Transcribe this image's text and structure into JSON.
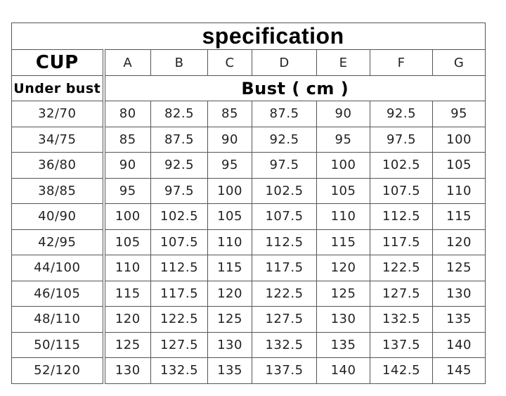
{
  "title": "specification",
  "cup_label": "CUP",
  "cups": [
    "A",
    "B",
    "C",
    "D",
    "E",
    "F",
    "G"
  ],
  "under_bust_label": "Under bust",
  "bust_label": "Bust ( cm )",
  "rows": [
    {
      "under_bust": "32/70",
      "values": [
        "80",
        "82.5",
        "85",
        "87.5",
        "90",
        "92.5",
        "95"
      ]
    },
    {
      "under_bust": "34/75",
      "values": [
        "85",
        "87.5",
        "90",
        "92.5",
        "95",
        "97.5",
        "100"
      ]
    },
    {
      "under_bust": "36/80",
      "values": [
        "90",
        "92.5",
        "95",
        "97.5",
        "100",
        "102.5",
        "105"
      ]
    },
    {
      "under_bust": "38/85",
      "values": [
        "95",
        "97.5",
        "100",
        "102.5",
        "105",
        "107.5",
        "110"
      ]
    },
    {
      "under_bust": "40/90",
      "values": [
        "100",
        "102.5",
        "105",
        "107.5",
        "110",
        "112.5",
        "115"
      ]
    },
    {
      "under_bust": "42/95",
      "values": [
        "105",
        "107.5",
        "110",
        "112.5",
        "115",
        "117.5",
        "120"
      ]
    },
    {
      "under_bust": "44/100",
      "values": [
        "110",
        "112.5",
        "115",
        "117.5",
        "120",
        "122.5",
        "125"
      ]
    },
    {
      "under_bust": "46/105",
      "values": [
        "115",
        "117.5",
        "120",
        "122.5",
        "125",
        "127.5",
        "130"
      ]
    },
    {
      "under_bust": "48/110",
      "values": [
        "120",
        "122.5",
        "125",
        "127.5",
        "130",
        "132.5",
        "135"
      ]
    },
    {
      "under_bust": "50/115",
      "values": [
        "125",
        "127.5",
        "130",
        "132.5",
        "135",
        "137.5",
        "140"
      ]
    },
    {
      "under_bust": "52/120",
      "values": [
        "130",
        "132.5",
        "135",
        "137.5",
        "140",
        "142.5",
        "145"
      ]
    }
  ]
}
